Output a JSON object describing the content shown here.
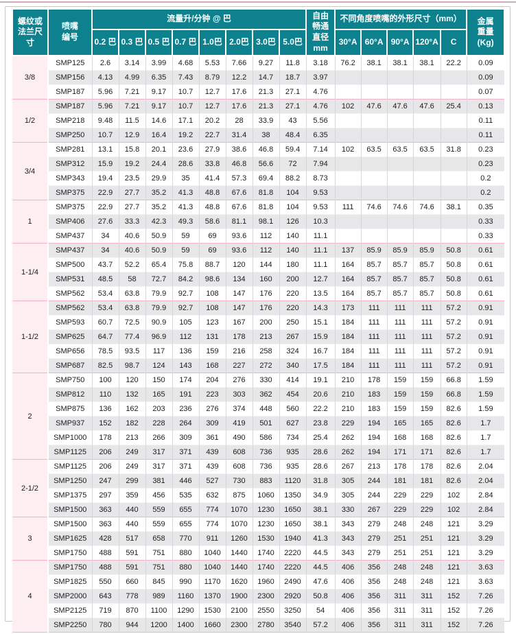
{
  "colors": {
    "header_teal": "#0d818e",
    "size_column_pink": "#fdeef2",
    "row_stripe_gray": "#e7e7e9",
    "group_separator_pink": "#f2b3c6",
    "frame_border_gray": "#c6c6c6",
    "top_rule": "#ccabba"
  },
  "table": {
    "header": {
      "size": "螺纹或法兰尺寸",
      "nozzle": "喷嘴编号",
      "flow_group": "流量升/分钟 @ 巴",
      "flow_cols": [
        "0.2 巴",
        "0.3 巴",
        "0.5 巴",
        "0.7 巴",
        "1.0巴",
        "2.0巴",
        "3.0巴",
        "5.0巴"
      ],
      "free_passage": "自由畅通直径mm",
      "dim_group": "不同角度喷嘴的外形尺寸（mm）",
      "dim_cols": [
        "30°A",
        "60°A",
        "90°A",
        "120°A",
        "C"
      ],
      "weight": "金属重量(Kg)"
    },
    "groups": [
      {
        "size": "3/8",
        "rows": [
          {
            "model": "SMP125",
            "flow": [
              "2.6",
              "3.14",
              "3.99",
              "4.68",
              "5.53",
              "7.66",
              "9.27",
              "11.8"
            ],
            "free": "3.18",
            "dims": [
              "76.2",
              "38.1",
              "38.1",
              "38.1",
              "22.2"
            ],
            "weight": "0.09"
          },
          {
            "model": "SMP156",
            "flow": [
              "4.13",
              "4.99",
              "6.35",
              "7.43",
              "8.79",
              "12.2",
              "14.7",
              "18.7"
            ],
            "free": "3.97",
            "dims": [
              "",
              "",
              "",
              "",
              ""
            ],
            "weight": "0.09"
          },
          {
            "model": "SMP187",
            "flow": [
              "5.96",
              "7.21",
              "9.17",
              "10.7",
              "12.7",
              "17.6",
              "21.3",
              "27.1"
            ],
            "free": "4.76",
            "dims": [
              "",
              "",
              "",
              "",
              ""
            ],
            "weight": "0.07"
          }
        ]
      },
      {
        "size": "1/2",
        "rows": [
          {
            "model": "SMP187",
            "flow": [
              "5.96",
              "7.21",
              "9.17",
              "10.7",
              "12.7",
              "17.6",
              "21.3",
              "27.1"
            ],
            "free": "4.76",
            "dims": [
              "102",
              "47.6",
              "47.6",
              "47.6",
              "25.4"
            ],
            "weight": "0.13"
          },
          {
            "model": "SMP218",
            "flow": [
              "9.48",
              "11.5",
              "14.6",
              "17.1",
              "20.2",
              "28",
              "33.9",
              "43"
            ],
            "free": "5.56",
            "dims": [
              "",
              "",
              "",
              "",
              ""
            ],
            "weight": "0.11"
          },
          {
            "model": "SMP250",
            "flow": [
              "10.7",
              "12.9",
              "16.4",
              "19.2",
              "22.7",
              "31.4",
              "38",
              "48.4"
            ],
            "free": "6.35",
            "dims": [
              "",
              "",
              "",
              "",
              ""
            ],
            "weight": "0.11"
          }
        ]
      },
      {
        "size": "3/4",
        "rows": [
          {
            "model": "SMP281",
            "flow": [
              "13.1",
              "15.8",
              "20.1",
              "23.6",
              "27.9",
              "38.6",
              "46.8",
              "59.4"
            ],
            "free": "7.14",
            "dims": [
              "102",
              "63.5",
              "63.5",
              "63.5",
              "31.8"
            ],
            "weight": "0.23"
          },
          {
            "model": "SMP312",
            "flow": [
              "15.9",
              "19.2",
              "24.4",
              "28.6",
              "33.8",
              "46.8",
              "56.6",
              "72"
            ],
            "free": "7.94",
            "dims": [
              "",
              "",
              "",
              "",
              ""
            ],
            "weight": "0.23"
          },
          {
            "model": "SMP343",
            "flow": [
              "19.4",
              "23.5",
              "29.9",
              "35",
              "41.4",
              "57.3",
              "69.4",
              "88.2"
            ],
            "free": "8.73",
            "dims": [
              "",
              "",
              "",
              "",
              ""
            ],
            "weight": "0.2"
          },
          {
            "model": "SMP375",
            "flow": [
              "22.9",
              "27.7",
              "35.2",
              "41.3",
              "48.8",
              "67.6",
              "81.8",
              "104"
            ],
            "free": "9.53",
            "dims": [
              "",
              "",
              "",
              "",
              ""
            ],
            "weight": "0.2"
          }
        ]
      },
      {
        "size": "1",
        "rows": [
          {
            "model": "SMP375",
            "flow": [
              "22.9",
              "27.7",
              "35.2",
              "41.3",
              "48.8",
              "67.6",
              "81.8",
              "104"
            ],
            "free": "9.53",
            "dims": [
              "111",
              "74.6",
              "74.6",
              "74.6",
              "38.1"
            ],
            "weight": "0.35"
          },
          {
            "model": "SMP406",
            "flow": [
              "27.6",
              "33.3",
              "42.3",
              "49.3",
              "58.6",
              "81.1",
              "98.1",
              "126"
            ],
            "free": "10.3",
            "dims": [
              "",
              "",
              "",
              "",
              ""
            ],
            "weight": "0.33"
          },
          {
            "model": "SMP437",
            "flow": [
              "34",
              "40.6",
              "50.9",
              "59",
              "69",
              "93.6",
              "112",
              "140"
            ],
            "free": "11.1",
            "dims": [
              "",
              "",
              "",
              "",
              ""
            ],
            "weight": "0.33"
          }
        ]
      },
      {
        "size": "1-1/4",
        "rows": [
          {
            "model": "SMP437",
            "flow": [
              "34",
              "40.6",
              "50.9",
              "59",
              "69",
              "93.6",
              "112",
              "140"
            ],
            "free": "11.1",
            "dims": [
              "137",
              "85.9",
              "85.9",
              "85.9",
              "50.8"
            ],
            "weight": "0.61"
          },
          {
            "model": "SMP500",
            "flow": [
              "43.7",
              "52.2",
              "65.4",
              "75.8",
              "88.7",
              "120",
              "144",
              "180"
            ],
            "free": "11.1",
            "dims": [
              "164",
              "85.7",
              "85.7",
              "85.7",
              "50.8"
            ],
            "weight": "0.61"
          },
          {
            "model": "SMP531",
            "flow": [
              "48.5",
              "58",
              "72.7",
              "84.2",
              "98.6",
              "134",
              "160",
              "200"
            ],
            "free": "12.7",
            "dims": [
              "164",
              "85.7",
              "85.7",
              "85.7",
              "50.8"
            ],
            "weight": "0.61"
          },
          {
            "model": "SMP562",
            "flow": [
              "53.4",
              "63.8",
              "79.9",
              "92.7",
              "108",
              "147",
              "176",
              "220"
            ],
            "free": "13.5",
            "dims": [
              "164",
              "85.7",
              "85.7",
              "85.7",
              "50.8"
            ],
            "weight": "0.61"
          }
        ]
      },
      {
        "size": "1-1/2",
        "rows": [
          {
            "model": "SMP562",
            "flow": [
              "53.4",
              "63.8",
              "79.9",
              "92.7",
              "108",
              "147",
              "176",
              "220"
            ],
            "free": "14.3",
            "dims": [
              "173",
              "111",
              "111",
              "111",
              "57.2"
            ],
            "weight": "0.91"
          },
          {
            "model": "SMP593",
            "flow": [
              "60.7",
              "72.5",
              "90.9",
              "105",
              "123",
              "167",
              "200",
              "250"
            ],
            "free": "15.1",
            "dims": [
              "184",
              "111",
              "111",
              "111",
              "57.2"
            ],
            "weight": "0.91"
          },
          {
            "model": "SMP625",
            "flow": [
              "64.7",
              "77.4",
              "96.9",
              "112",
              "131",
              "178",
              "213",
              "267"
            ],
            "free": "15.9",
            "dims": [
              "184",
              "111",
              "111",
              "111",
              "57.2"
            ],
            "weight": "0.91"
          },
          {
            "model": "SMP656",
            "flow": [
              "78.5",
              "93.5",
              "117",
              "136",
              "159",
              "216",
              "258",
              "324"
            ],
            "free": "16.7",
            "dims": [
              "184",
              "111",
              "111",
              "111",
              "57.2"
            ],
            "weight": "0.91"
          },
          {
            "model": "SMP687",
            "flow": [
              "82.5",
              "98.7",
              "124",
              "143",
              "168",
              "227",
              "272",
              "340"
            ],
            "free": "17.5",
            "dims": [
              "184",
              "111",
              "111",
              "111",
              "57.2"
            ],
            "weight": "0.91"
          }
        ]
      },
      {
        "size": "2",
        "rows": [
          {
            "model": "SMP750",
            "flow": [
              "100",
              "120",
              "150",
              "174",
              "204",
              "276",
              "330",
              "414"
            ],
            "free": "19.1",
            "dims": [
              "210",
              "178",
              "159",
              "159",
              "66.8"
            ],
            "weight": "1.59"
          },
          {
            "model": "SMP812",
            "flow": [
              "110",
              "132",
              "165",
              "191",
              "223",
              "303",
              "362",
              "454"
            ],
            "free": "20.6",
            "dims": [
              "210",
              "183",
              "159",
              "159",
              "66.8"
            ],
            "weight": "1.59"
          },
          {
            "model": "SMP875",
            "flow": [
              "136",
              "162",
              "203",
              "236",
              "276",
              "374",
              "448",
              "560"
            ],
            "free": "22.2",
            "dims": [
              "210",
              "183",
              "159",
              "159",
              "82.6"
            ],
            "weight": "1.59"
          },
          {
            "model": "SMP937",
            "flow": [
              "152",
              "182",
              "228",
              "264",
              "309",
              "419",
              "501",
              "627"
            ],
            "free": "23.8",
            "dims": [
              "229",
              "194",
              "165",
              "165",
              "82.6"
            ],
            "weight": "1.7"
          },
          {
            "model": "SMP1000",
            "flow": [
              "178",
              "213",
              "266",
              "309",
              "361",
              "490",
              "586",
              "734"
            ],
            "free": "25.4",
            "dims": [
              "262",
              "194",
              "168",
              "168",
              "82.6"
            ],
            "weight": "1.7"
          },
          {
            "model": "SMP1125",
            "flow": [
              "206",
              "249",
              "317",
              "371",
              "439",
              "608",
              "736",
              "935"
            ],
            "free": "28.6",
            "dims": [
              "262",
              "194",
              "171",
              "171",
              "82.6"
            ],
            "weight": "1.7"
          }
        ]
      },
      {
        "size": "2-1/2",
        "rows": [
          {
            "model": "SMP1125",
            "flow": [
              "206",
              "249",
              "317",
              "371",
              "439",
              "608",
              "736",
              "935"
            ],
            "free": "28.6",
            "dims": [
              "267",
              "213",
              "178",
              "178",
              "82.6"
            ],
            "weight": "2.04"
          },
          {
            "model": "SMP1250",
            "flow": [
              "247",
              "299",
              "381",
              "446",
              "527",
              "730",
              "883",
              "1120"
            ],
            "free": "31.8",
            "dims": [
              "305",
              "244",
              "181",
              "181",
              "82.6"
            ],
            "weight": "2.04"
          },
          {
            "model": "SMP1375",
            "flow": [
              "297",
              "359",
              "456",
              "535",
              "632",
              "875",
              "1060",
              "1350"
            ],
            "free": "34.9",
            "dims": [
              "305",
              "244",
              "229",
              "229",
              "102"
            ],
            "weight": "2.84"
          },
          {
            "model": "SMP1500",
            "flow": [
              "363",
              "440",
              "559",
              "655",
              "774",
              "1070",
              "1230",
              "1650"
            ],
            "free": "38.1",
            "dims": [
              "330",
              "267",
              "229",
              "229",
              "102"
            ],
            "weight": "2.84"
          }
        ]
      },
      {
        "size": "3",
        "rows": [
          {
            "model": "SMP1500",
            "flow": [
              "363",
              "440",
              "559",
              "655",
              "774",
              "1070",
              "1230",
              "1650"
            ],
            "free": "38.1",
            "dims": [
              "343",
              "279",
              "248",
              "248",
              "121"
            ],
            "weight": "3.29"
          },
          {
            "model": "SMP1625",
            "flow": [
              "428",
              "517",
              "658",
              "770",
              "911",
              "1260",
              "1530",
              "1940"
            ],
            "free": "41.3",
            "dims": [
              "343",
              "279",
              "251",
              "251",
              "121"
            ],
            "weight": "3.29"
          },
          {
            "model": "SMP1750",
            "flow": [
              "488",
              "591",
              "751",
              "880",
              "1040",
              "1440",
              "1740",
              "2220"
            ],
            "free": "44.5",
            "dims": [
              "343",
              "279",
              "251",
              "251",
              "121"
            ],
            "weight": "3.29"
          }
        ]
      },
      {
        "size": "4",
        "rows": [
          {
            "model": "SMP1750",
            "flow": [
              "488",
              "591",
              "751",
              "880",
              "1040",
              "1440",
              "1740",
              "2220"
            ],
            "free": "44.5",
            "dims": [
              "406",
              "356",
              "248",
              "248",
              "121"
            ],
            "weight": "3.63"
          },
          {
            "model": "SMP1825",
            "flow": [
              "550",
              "660",
              "845",
              "990",
              "1170",
              "1620",
              "1960",
              "2490"
            ],
            "free": "47.6",
            "dims": [
              "406",
              "356",
              "248",
              "248",
              "121"
            ],
            "weight": "3.63"
          },
          {
            "model": "SMP2000",
            "flow": [
              "643",
              "778",
              "989",
              "1160",
              "1370",
              "1900",
              "2300",
              "2920"
            ],
            "free": "50.8",
            "dims": [
              "406",
              "356",
              "311",
              "311",
              "152"
            ],
            "weight": "7.26"
          },
          {
            "model": "SMP2125",
            "flow": [
              "719",
              "870",
              "1100",
              "1290",
              "1530",
              "2100",
              "2550",
              "3250"
            ],
            "free": "54",
            "dims": [
              "406",
              "356",
              "311",
              "311",
              "152"
            ],
            "weight": "7.26"
          },
          {
            "model": "SMP2250",
            "flow": [
              "780",
              "944",
              "1200",
              "1400",
              "1660",
              "2300",
              "2780",
              "3540"
            ],
            "free": "57.2",
            "dims": [
              "406",
              "356",
              "311",
              "311",
              "152"
            ],
            "weight": "7.26"
          }
        ]
      }
    ]
  }
}
